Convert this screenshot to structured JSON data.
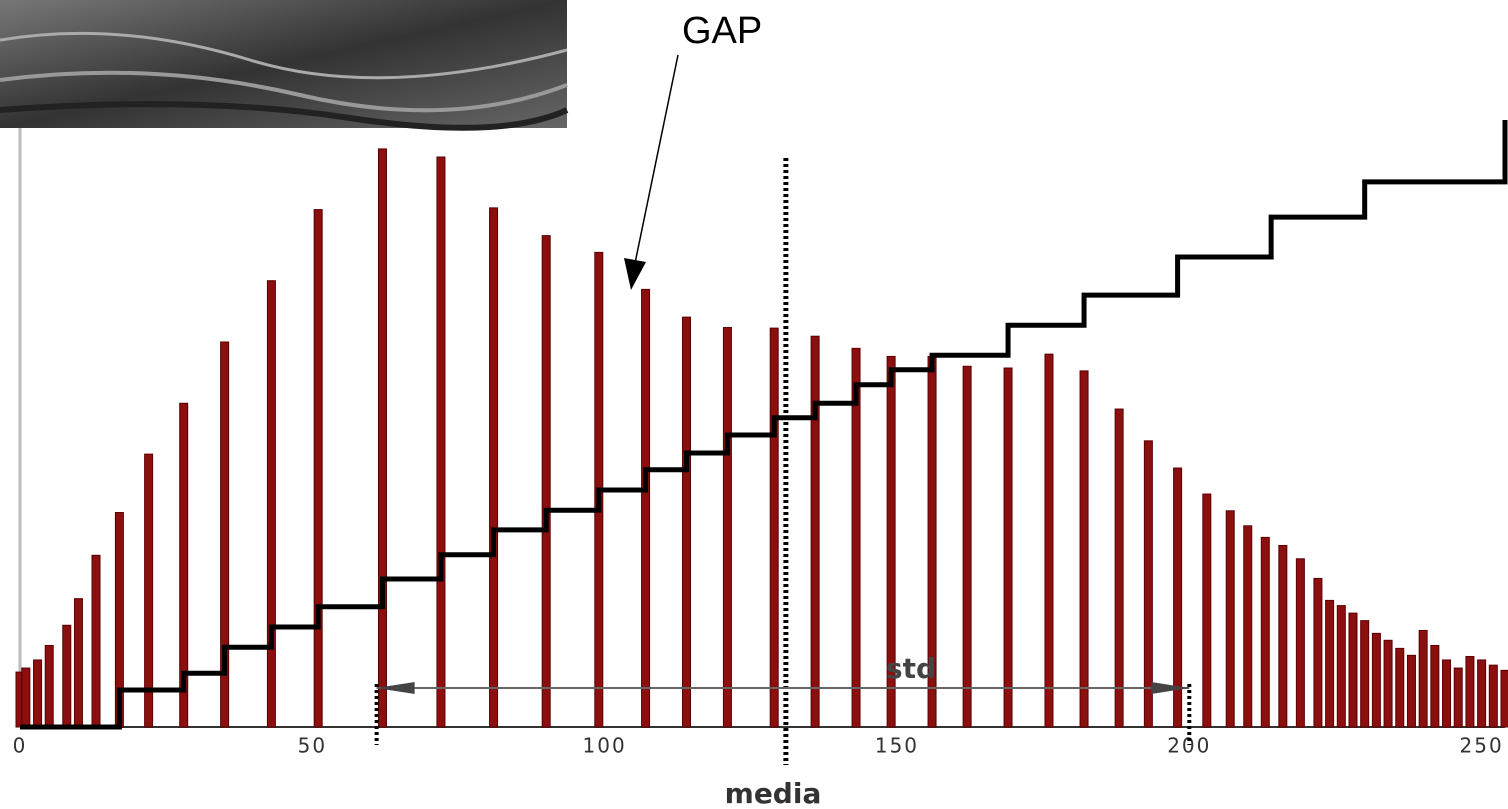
{
  "chart_data": {
    "type": "bar",
    "x": [
      0,
      1,
      3,
      5,
      8,
      10,
      13,
      17,
      22,
      28,
      35,
      43,
      51,
      62,
      72,
      81,
      90,
      99,
      107,
      114,
      121,
      129,
      136,
      143,
      149,
      156,
      162,
      169,
      176,
      182,
      188,
      193,
      198,
      203,
      207,
      210,
      213,
      216,
      219,
      222,
      224,
      226,
      228,
      230,
      232,
      234,
      236,
      238,
      240,
      242,
      244,
      246,
      248,
      250,
      252,
      254
    ],
    "values": [
      9.5,
      10.2,
      11.6,
      14.1,
      17.6,
      22.2,
      29.7,
      37.1,
      47.2,
      56.0,
      66.6,
      77.2,
      89.5,
      100,
      98.6,
      89.8,
      85.0,
      82.1,
      75.7,
      70.9,
      69.1,
      69.0,
      67.6,
      65.5,
      64.1,
      64.1,
      62.4,
      62.1,
      64.5,
      61.6,
      55.0,
      49.5,
      44.8,
      40.3,
      37.4,
      34.8,
      32.8,
      31.4,
      29.1,
      25.7,
      21.9,
      21.0,
      19.7,
      18.4,
      16.2,
      15.0,
      13.6,
      12.4,
      16.7,
      14.1,
      11.6,
      10.2,
      12.2,
      11.6,
      10.7,
      9.8
    ],
    "color": "#8b0f0f",
    "line": {
      "color": "#000000",
      "x": [
        0,
        17,
        28,
        35,
        43,
        51,
        62,
        72,
        81,
        90,
        99,
        107,
        114,
        121,
        129,
        136,
        143,
        149,
        156,
        169,
        182,
        198,
        214,
        230,
        254
      ],
      "values": [
        0,
        6.4,
        9.3,
        13.8,
        17.3,
        20.8,
        25.6,
        29.8,
        34.1,
        37.5,
        41.0,
        44.5,
        47.4,
        50.5,
        53.5,
        56.0,
        59.2,
        61.8,
        64.3,
        69.5,
        74.7,
        81.3,
        88.2,
        94.3,
        105
      ]
    },
    "xlim": [
      0,
      254
    ],
    "xticks": [
      0,
      50,
      100,
      150,
      200,
      250
    ],
    "ylim": [
      0,
      105
    ],
    "xlabel": "media",
    "mean_line": 131,
    "std_lines": [
      61,
      200
    ],
    "std_label": "std",
    "gap_label": "GAP"
  }
}
